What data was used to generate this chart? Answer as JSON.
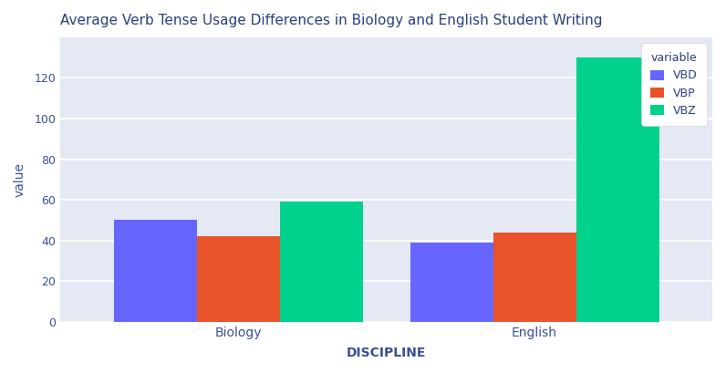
{
  "title": "Average Verb Tense Usage Differences in Biology and English Student Writing",
  "xlabel": "DISCIPLINE",
  "ylabel": "value",
  "legend_title": "variable",
  "categories": [
    "Biology",
    "English"
  ],
  "series": {
    "VBD": [
      50,
      39
    ],
    "VBP": [
      42,
      44
    ],
    "VBZ": [
      59,
      130
    ]
  },
  "colors": {
    "VBD": "#6666ff",
    "VBP": "#e8532a",
    "VBZ": "#00d18c"
  },
  "plot_background": "#e4e9f4",
  "figure_background": "#ffffff",
  "ylim": [
    0,
    140
  ],
  "yticks": [
    0,
    20,
    40,
    60,
    80,
    100,
    120
  ],
  "title_color": "#2a3f7e",
  "axis_label_color": "#3a5099",
  "tick_color": "#3a5099",
  "grid_color": "#ffffff",
  "bar_width": 0.28,
  "title_fontsize": 11
}
